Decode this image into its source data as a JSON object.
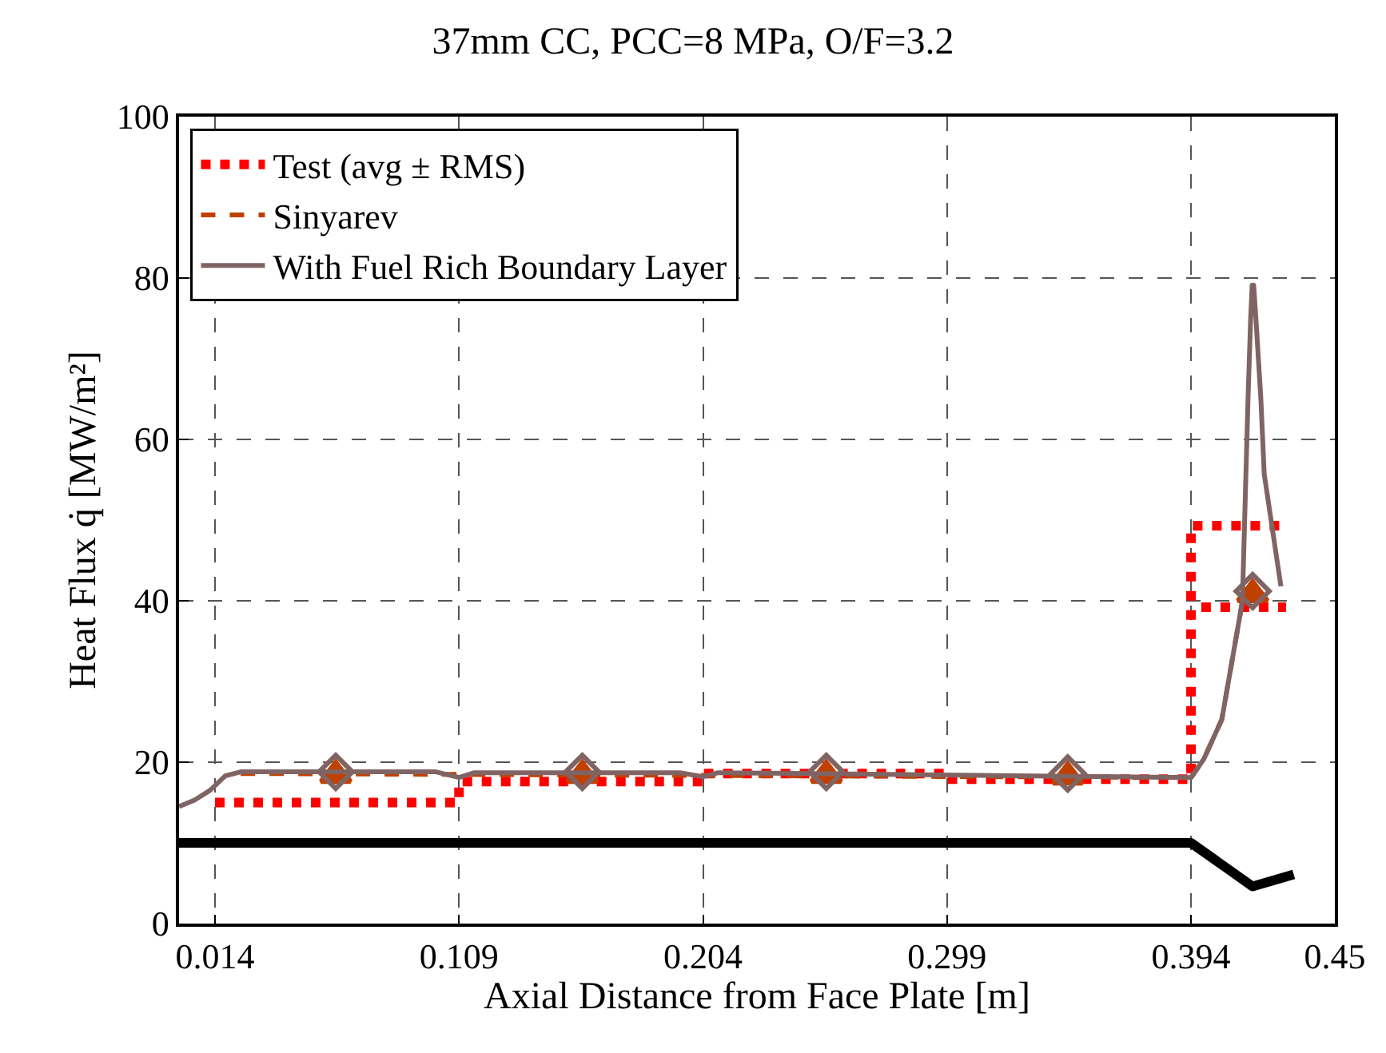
{
  "chart_data": {
    "type": "line",
    "title": "37mm CC, PCC=8 MPa, O/F=3.2",
    "xlabel": "Axial Distance from Face Plate [m]",
    "ylabel": "Heat Flux q̇ [MW/m²]",
    "xlim": [
      0,
      0.45
    ],
    "xticks": [
      0.014,
      0.109,
      0.204,
      0.299,
      0.394,
      0.45
    ],
    "ylim": [
      0,
      100
    ],
    "yticks": [
      0,
      20,
      40,
      60,
      80,
      100
    ],
    "grid": true,
    "legend": "top left",
    "series": [
      {
        "name": null,
        "color": "#000000",
        "line_style": "solid",
        "marker": "none",
        "x": [
          0,
          0.394,
          0.418,
          0.434
        ],
        "values": [
          10,
          10,
          4.6,
          6.1
        ]
      },
      {
        "name": "Test (avg ± RMS)",
        "color": "#ff0000",
        "line_style": "dotted",
        "marker": "none",
        "x": [
          0.014,
          0.109,
          0.109,
          0.204,
          0.204,
          0.299,
          0.299,
          0.394,
          0.394,
          0.43,
          0.415,
          0.398,
          0.431
        ],
        "values": [
          15,
          15,
          17.6,
          17.6,
          18.6,
          18.6,
          17.9,
          17.9,
          49.3,
          49.3,
          null,
          39.2,
          39.2
        ]
      },
      {
        "name": "Sinyarev",
        "color": "#c04000",
        "line_style": "dashed",
        "marker": "none",
        "x": [
          0.024,
          0.394,
          0.399,
          0.406,
          0.414,
          0.418
        ],
        "values": [
          18.6,
          18.1,
          20.4,
          25.3,
          39.9,
          40.8
        ]
      },
      {
        "name": null,
        "color": "#c04000",
        "type": "scatter",
        "marker": "triangle",
        "x": [
          0.061,
          0.157,
          0.252,
          0.346,
          0.418
        ],
        "values": [
          18.4,
          18.4,
          18.4,
          18.2,
          40.8
        ]
      },
      {
        "name": "With Fuel Rich Boundary Layer",
        "color": "#806464",
        "line_style": "solid",
        "marker": "none",
        "x": [
          0,
          0.006,
          0.012,
          0.018,
          0.024,
          0.1,
          0.109,
          0.115,
          0.195,
          0.204,
          0.21,
          0.394,
          0.399,
          0.406,
          0.414,
          0.4162,
          0.4172,
          0.4178,
          0.4184,
          0.4193,
          0.4212,
          0.4225,
          0.429
        ],
        "values": [
          14.5,
          15.3,
          16.5,
          18.3,
          18.8,
          18.8,
          18.1,
          18.7,
          18.7,
          18.2,
          18.7,
          18.1,
          20.4,
          25.3,
          39.9,
          65,
          74.8,
          79.1,
          79.1,
          74.8,
          65,
          55.7,
          41.8
        ]
      },
      {
        "name": null,
        "color": "#806464",
        "type": "scatter",
        "marker": "diamond",
        "x": [
          0.061,
          0.157,
          0.252,
          0.346,
          0.418
        ],
        "values": [
          18.8,
          18.8,
          18.8,
          18.6,
          41.2
        ]
      }
    ]
  }
}
